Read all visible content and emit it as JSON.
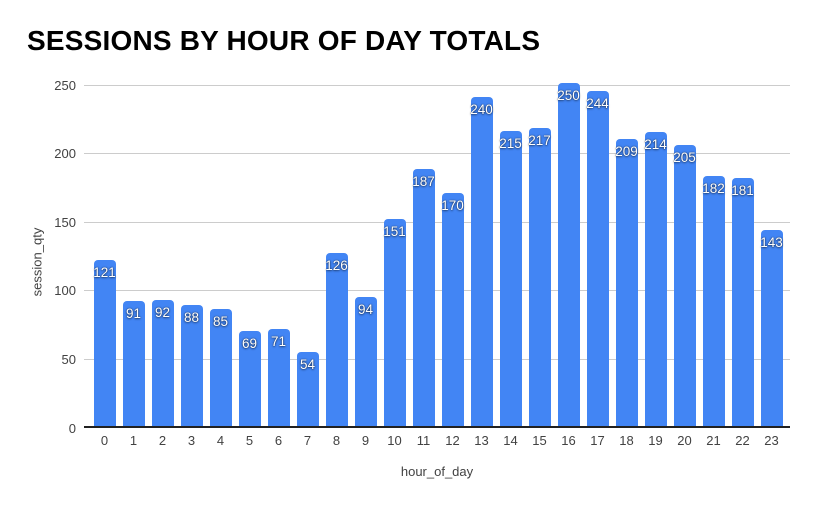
{
  "chart_data": {
    "type": "bar",
    "title": "SESSIONS BY HOUR OF DAY TOTALS",
    "categories": [
      "0",
      "1",
      "2",
      "3",
      "4",
      "5",
      "6",
      "7",
      "8",
      "9",
      "10",
      "11",
      "12",
      "13",
      "14",
      "15",
      "16",
      "17",
      "18",
      "19",
      "20",
      "21",
      "22",
      "23"
    ],
    "values": [
      121,
      91,
      92,
      88,
      85,
      69,
      71,
      54,
      126,
      94,
      151,
      187,
      170,
      240,
      215,
      217,
      250,
      244,
      209,
      214,
      205,
      182,
      181,
      143
    ],
    "xlabel": "hour_of_day",
    "ylabel": "session_qty",
    "ylim": [
      0,
      250
    ],
    "yticks": [
      0,
      50,
      100,
      150,
      200,
      250
    ],
    "grid": true,
    "legend": "none",
    "data_labels": "inside-top"
  },
  "colors": {
    "bar": "#4285f4",
    "gridline": "#cccccc",
    "axis_line": "#212121",
    "tick_text": "#424242",
    "title_text": "#000000",
    "data_label_text": "#ffffff",
    "background": "#ffffff"
  }
}
